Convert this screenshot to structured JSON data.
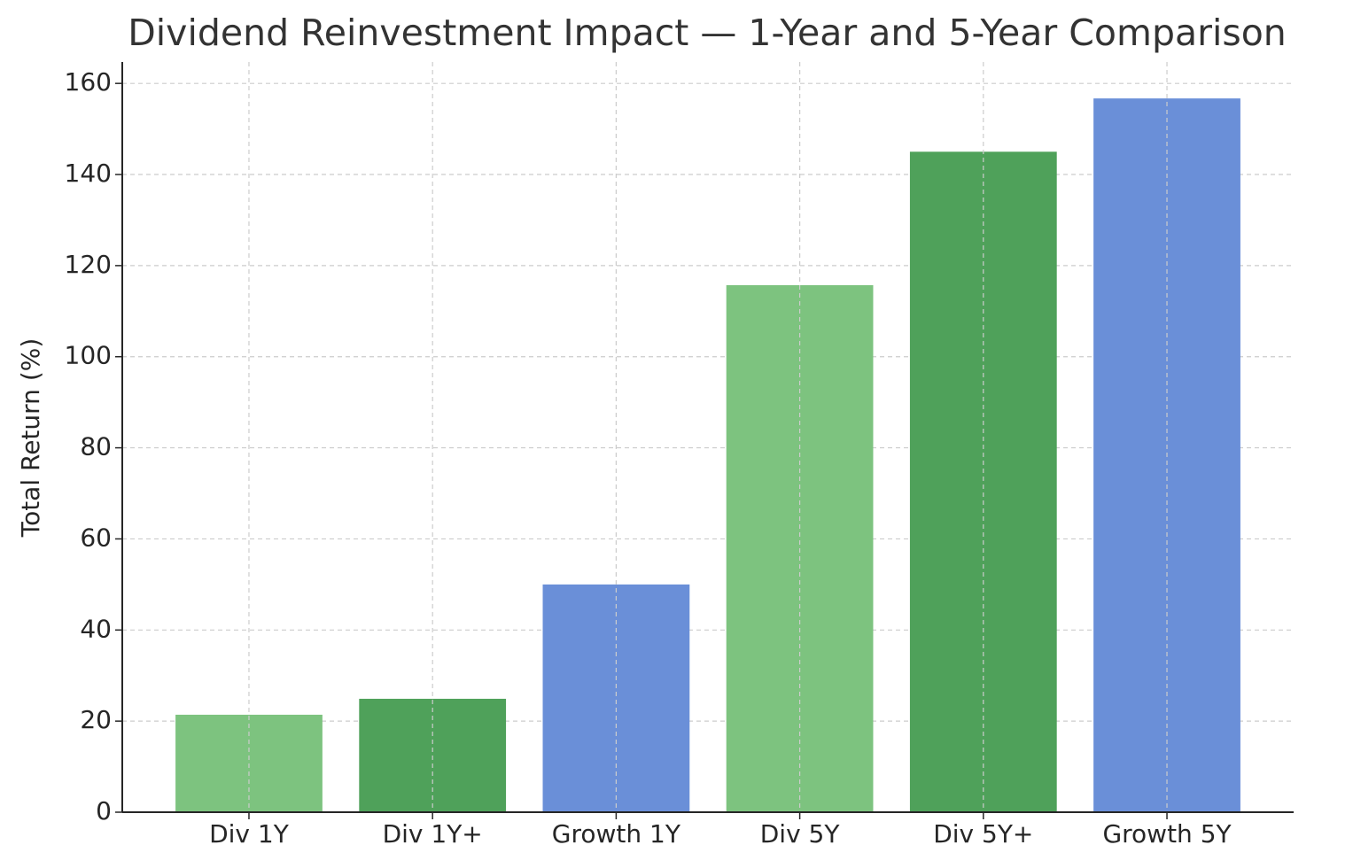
{
  "chart_data": {
    "type": "bar",
    "title": "Dividend Reinvestment Impact — 1-Year and 5-Year Comparison",
    "y_label": "Total Return (%)",
    "categories": [
      "Div 1Y",
      "Div 1Y+",
      "Growth 1Y",
      "Div 5Y",
      "Div 5Y+",
      "Growth 5Y"
    ],
    "values": [
      21.4,
      24.9,
      50,
      115.7,
      145.0,
      156.7
    ],
    "colors": [
      "#7dc37f",
      "#4fa15a",
      "#6a8fd8",
      "#7dc37f",
      "#4fa15a",
      "#6a8fd8"
    ],
    "ylim": [
      0,
      164.7
    ],
    "yticks": [
      0,
      20,
      40,
      60,
      80,
      100,
      120,
      140,
      160
    ],
    "grid": true
  }
}
